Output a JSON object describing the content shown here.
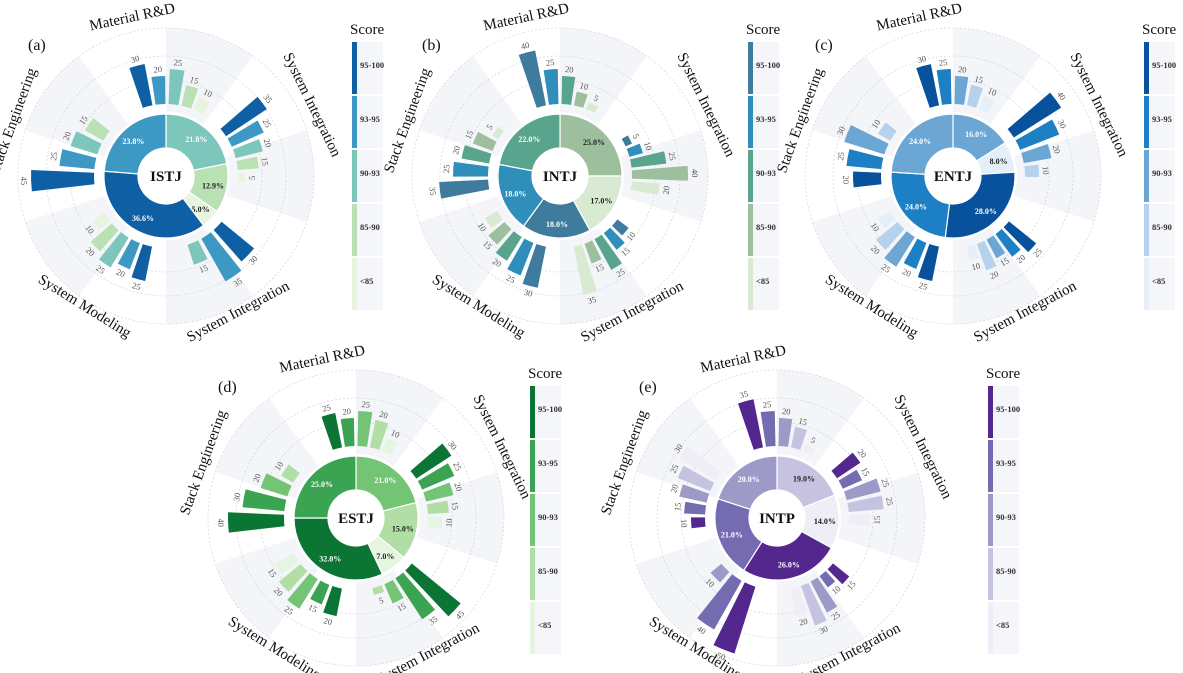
{
  "colorbar_title": "Score",
  "score_levels": [
    "95-100",
    "93-95",
    "90-93",
    "85-90",
    "<85"
  ],
  "chart_data": [
    {
      "type": "sunburst-radial-bar",
      "panel_label": "(a)",
      "center_label": "ISTJ",
      "palette": [
        "#0e5fa3",
        "#3d98c4",
        "#7cc6bc",
        "#b9e1b4",
        "#e7f4de"
      ],
      "sectors": [
        {
          "name": "Material R&D",
          "percent": 21.8,
          "level": 2
        },
        {
          "name": "System Integration",
          "percent": 12.9,
          "level": 3
        },
        {
          "name": "System Integration",
          "percent": 5.0,
          "level": 4
        },
        {
          "name": "System Modeling",
          "percent": 36.6,
          "level": 0
        },
        {
          "name": "Stack Engineering",
          "percent": 23.8,
          "level": 1
        }
      ],
      "category_labels": [
        {
          "text": "Material R&D",
          "angle": -12
        },
        {
          "text": "System Integration",
          "angle": 64
        },
        {
          "text": "System Integration",
          "angle": 152
        },
        {
          "text": "System Modeling",
          "angle": 212
        },
        {
          "text": "Stack Engineering",
          "angle": 290
        }
      ],
      "bar_groups": [
        {
          "start": 340,
          "span": 52,
          "values": [
            30,
            20,
            25,
            15,
            10
          ]
        },
        {
          "start": 48,
          "span": 48,
          "values": [
            35,
            25,
            20,
            15,
            5
          ]
        },
        {
          "start": 128,
          "span": 36,
          "values": [
            30,
            35,
            15
          ]
        },
        {
          "start": 190,
          "span": 50,
          "values": [
            25,
            20,
            25,
            20,
            10
          ]
        },
        {
          "start": 262,
          "span": 48,
          "values": [
            45,
            25,
            20,
            15
          ]
        }
      ]
    },
    {
      "type": "sunburst-radial-bar",
      "panel_label": "(b)",
      "center_label": "INTJ",
      "palette": [
        "#3f7b9d",
        "#2f8fba",
        "#59a48d",
        "#9dbf9e",
        "#d8ead1"
      ],
      "sectors": [
        {
          "name": "Material R&D",
          "percent": 25.0,
          "level": 3
        },
        {
          "name": "System Integration",
          "percent": 17.0,
          "level": 4
        },
        {
          "name": "System Integration",
          "percent": 18.0,
          "level": 0
        },
        {
          "name": "System Modeling",
          "percent": 18.0,
          "level": 1
        },
        {
          "name": "Stack Engineering",
          "percent": 22.0,
          "level": 2
        }
      ],
      "category_labels": [
        {
          "text": "Material R&D",
          "angle": -12
        },
        {
          "text": "System Integration",
          "angle": 64
        },
        {
          "text": "System Integration",
          "angle": 152
        },
        {
          "text": "System Modeling",
          "angle": 212
        },
        {
          "text": "Stack Engineering",
          "angle": 290
        }
      ],
      "bar_groups": [
        {
          "start": 340,
          "span": 50,
          "values": [
            40,
            25,
            20,
            10,
            5
          ]
        },
        {
          "start": 58,
          "span": 44,
          "values": [
            5,
            10,
            25,
            40,
            20
          ]
        },
        {
          "start": 126,
          "span": 44,
          "values": [
            10,
            15,
            25,
            15,
            35
          ]
        },
        {
          "start": 190,
          "span": 52,
          "values": [
            30,
            25,
            20,
            15,
            10
          ]
        },
        {
          "start": 258,
          "span": 52,
          "values": [
            35,
            25,
            20,
            15,
            5
          ]
        }
      ]
    },
    {
      "type": "sunburst-radial-bar",
      "panel_label": "(c)",
      "center_label": "ENTJ",
      "palette": [
        "#08519c",
        "#1d7fc4",
        "#6ba6d4",
        "#b5d1eb",
        "#e4eff9"
      ],
      "sectors": [
        {
          "name": "Material R&D",
          "percent": 16.0,
          "level": 2
        },
        {
          "name": "System Integration",
          "percent": 8.0,
          "level": 4
        },
        {
          "name": "System Integration",
          "percent": 28.0,
          "level": 0
        },
        {
          "name": "System Modeling",
          "percent": 24.0,
          "level": 1
        },
        {
          "name": "Stack Engineering",
          "percent": 24.0,
          "level": 2
        }
      ],
      "category_labels": [
        {
          "text": "Material R&D",
          "angle": -12
        },
        {
          "text": "System Integration",
          "angle": 64
        },
        {
          "text": "System Integration",
          "angle": 152
        },
        {
          "text": "System Modeling",
          "angle": 212
        },
        {
          "text": "Stack Engineering",
          "angle": 290
        }
      ],
      "bar_groups": [
        {
          "start": 340,
          "span": 50,
          "values": [
            30,
            25,
            20,
            15,
            10
          ]
        },
        {
          "start": 48,
          "span": 44,
          "values": [
            40,
            30,
            20,
            10
          ]
        },
        {
          "start": 128,
          "span": 42,
          "values": [
            25,
            20,
            15,
            20,
            10
          ]
        },
        {
          "start": 190,
          "span": 52,
          "values": [
            25,
            20,
            25,
            20,
            10
          ]
        },
        {
          "start": 262,
          "span": 48,
          "values": [
            20,
            25,
            30,
            10
          ]
        }
      ]
    },
    {
      "type": "sunburst-radial-bar",
      "panel_label": "(d)",
      "center_label": "ESTJ",
      "palette": [
        "#0b7534",
        "#3ba453",
        "#74c476",
        "#b0dea5",
        "#e5f5e0"
      ],
      "sectors": [
        {
          "name": "Material R&D",
          "percent": 21.0,
          "level": 2
        },
        {
          "name": "System Integration",
          "percent": 15.0,
          "level": 3
        },
        {
          "name": "System Integration",
          "percent": 7.0,
          "level": 4
        },
        {
          "name": "System Modeling",
          "percent": 32.0,
          "level": 0
        },
        {
          "name": "Stack Engineering",
          "percent": 25.0,
          "level": 1
        }
      ],
      "category_labels": [
        {
          "text": "Material R&D",
          "angle": -12
        },
        {
          "text": "System Integration",
          "angle": 64
        },
        {
          "text": "System Integration",
          "angle": 152
        },
        {
          "text": "System Modeling",
          "angle": 212
        },
        {
          "text": "Stack Engineering",
          "angle": 290
        }
      ],
      "bar_groups": [
        {
          "start": 340,
          "span": 50,
          "values": [
            25,
            20,
            25,
            20,
            10
          ]
        },
        {
          "start": 48,
          "span": 50,
          "values": [
            30,
            25,
            20,
            15,
            10
          ]
        },
        {
          "start": 128,
          "span": 40,
          "values": [
            45,
            35,
            15,
            5
          ]
        },
        {
          "start": 190,
          "span": 52,
          "values": [
            20,
            15,
            25,
            20,
            15
          ]
        },
        {
          "start": 262,
          "span": 48,
          "values": [
            40,
            30,
            20,
            10
          ]
        }
      ]
    },
    {
      "type": "sunburst-radial-bar",
      "panel_label": "(e)",
      "center_label": "INTP",
      "palette": [
        "#54278f",
        "#756bb1",
        "#9e9ac8",
        "#c6c3e0",
        "#efedf5"
      ],
      "sectors": [
        {
          "name": "Material R&D",
          "percent": 19.0,
          "level": 3
        },
        {
          "name": "System Integration",
          "percent": 14.0,
          "level": 4
        },
        {
          "name": "System Integration",
          "percent": 26.0,
          "level": 0
        },
        {
          "name": "System Modeling",
          "percent": 21.0,
          "level": 1
        },
        {
          "name": "Stack Engineering",
          "percent": 20.0,
          "level": 2
        }
      ],
      "category_labels": [
        {
          "text": "Material R&D",
          "angle": -12
        },
        {
          "text": "System Integration",
          "angle": 64
        },
        {
          "text": "System Integration",
          "angle": 152
        },
        {
          "text": "System Modeling",
          "angle": 212
        },
        {
          "text": "Stack Engineering",
          "angle": 290
        }
      ],
      "bar_groups": [
        {
          "start": 340,
          "span": 50,
          "values": [
            35,
            25,
            20,
            15,
            5
          ]
        },
        {
          "start": 48,
          "span": 48,
          "values": [
            20,
            15,
            25,
            25,
            15
          ]
        },
        {
          "start": 128,
          "span": 42,
          "values": [
            15,
            10,
            25,
            30,
            20
          ]
        },
        {
          "start": 196,
          "span": 36,
          "values": [
            50,
            40,
            10
          ]
        },
        {
          "start": 262,
          "span": 48,
          "values": [
            10,
            15,
            20,
            25,
            30
          ]
        }
      ]
    }
  ]
}
